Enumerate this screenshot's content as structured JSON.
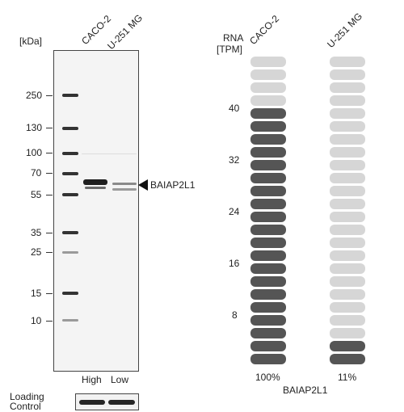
{
  "western_blot": {
    "unit_label": "[kDa]",
    "lanes": [
      "CACO-2",
      "U-251 MG"
    ],
    "lane_expression": [
      "High",
      "Low"
    ],
    "markers": [
      "250",
      "130",
      "100",
      "70",
      "55",
      "35",
      "25",
      "15",
      "10"
    ],
    "target_label": "BAIAP2L1",
    "loading_control_label_line1": "Loading",
    "loading_control_label_line2": "Control"
  },
  "rna": {
    "header_line1": "RNA",
    "header_line2": "[TPM]",
    "columns": [
      "CACO-2",
      "U-251 MG"
    ],
    "axis_ticks": [
      "40",
      "32",
      "24",
      "16",
      "8"
    ],
    "percentages": [
      "100%",
      "11%"
    ],
    "gene_label": "BAIAP2L1",
    "segments_total": 24,
    "filled_segments": [
      20,
      2
    ]
  },
  "colors": {
    "filled": "#555555",
    "empty": "#d6d6d6"
  }
}
